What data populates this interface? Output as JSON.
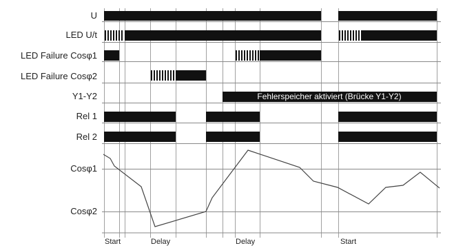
{
  "rows": [
    {
      "key": "u",
      "label": "U"
    },
    {
      "key": "led_ut",
      "label": "LED U/t"
    },
    {
      "key": "led_fail_1",
      "label": "LED Failure Cosφ1"
    },
    {
      "key": "led_fail_2",
      "label": "LED Failure Cosφ2"
    },
    {
      "key": "y1y2",
      "label": "Y1-Y2"
    },
    {
      "key": "rel1",
      "label": "Rel 1"
    },
    {
      "key": "rel2",
      "label": "Rel 2"
    }
  ],
  "y1y2_note": "Fehlerspeicher aktiviert (Brücke Y1-Y2)",
  "cos_labels": {
    "upper": "Cosφ1",
    "lower": "Cosφ2"
  },
  "time_markers": {
    "labels": [
      "Start",
      "Delay",
      "Delay",
      "Start"
    ]
  },
  "colors": {
    "bar": "#111111",
    "line": "#444444",
    "grid": "#888888"
  }
}
